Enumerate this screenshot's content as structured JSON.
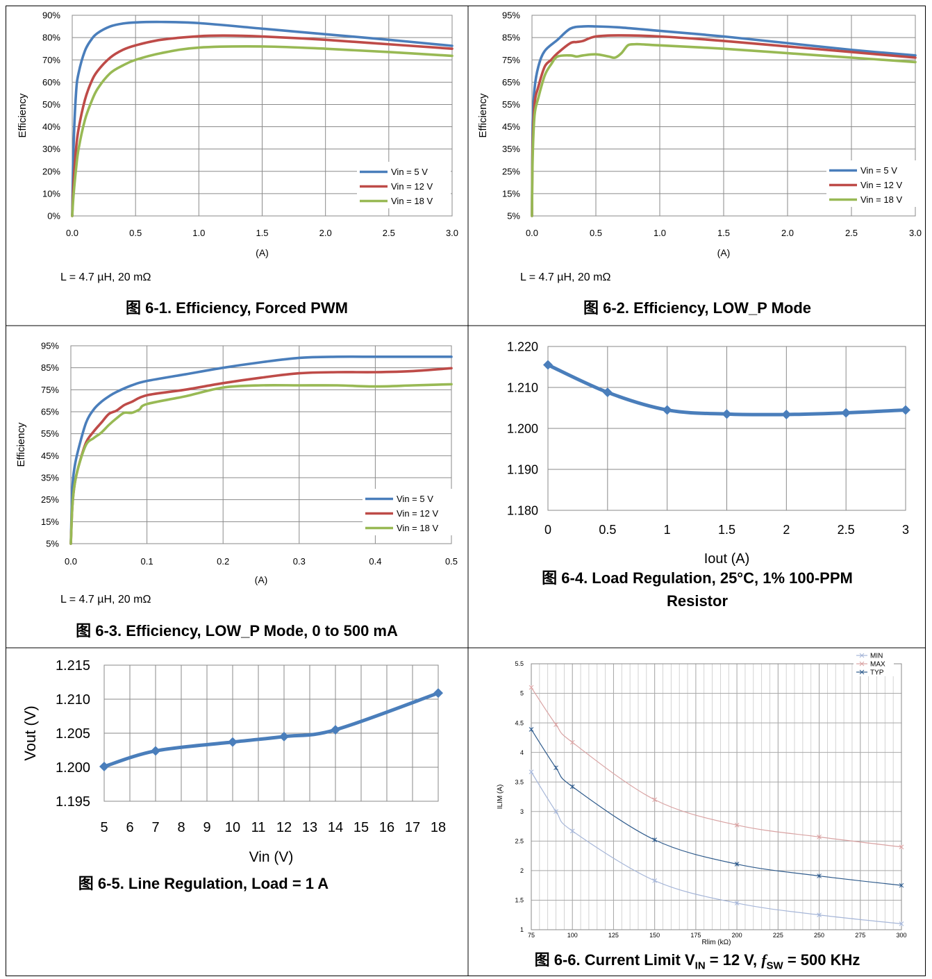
{
  "panels": [
    {
      "id": "fig1",
      "note": "L = 4.7 µH, 20 mΩ",
      "caption": "图 6-1. Efficiency, Forced PWM",
      "chart": {
        "type": "line",
        "ylabel": "Efficiency",
        "xlabel": "(A)",
        "xlim": [
          0,
          3
        ],
        "ylim": [
          0,
          90
        ],
        "xticks": [
          "0.0",
          "0.5",
          "1.0",
          "1.5",
          "2.0",
          "2.5",
          "3.0"
        ],
        "yticks": [
          "0%",
          "10%",
          "20%",
          "30%",
          "40%",
          "50%",
          "60%",
          "70%",
          "80%",
          "90%"
        ],
        "legend": "bottom-right",
        "series": [
          {
            "name": "Vin = 5 V",
            "color": "#4a7ebb",
            "x": [
              0,
              0.01,
              0.03,
              0.05,
              0.1,
              0.15,
              0.2,
              0.3,
              0.4,
              0.5,
              0.7,
              1.0,
              1.5,
              2.0,
              2.5,
              3.0
            ],
            "y": [
              0,
              30,
              55,
              64,
              74,
              79,
              82,
              85,
              86.3,
              86.8,
              87,
              86.5,
              84,
              81.5,
              79,
              76.3
            ]
          },
          {
            "name": "Vin = 12 V",
            "color": "#be4b48",
            "x": [
              0,
              0.01,
              0.03,
              0.05,
              0.1,
              0.15,
              0.2,
              0.3,
              0.4,
              0.5,
              0.7,
              1.0,
              1.2,
              1.5,
              2.0,
              2.5,
              3.0
            ],
            "y": [
              0,
              14,
              30,
              39,
              52,
              60,
              65,
              71,
              74.5,
              76.5,
              79,
              80.6,
              80.9,
              80.5,
              79,
              77,
              75
            ]
          },
          {
            "name": "Vin = 18 V",
            "color": "#98b954",
            "x": [
              0,
              0.01,
              0.03,
              0.05,
              0.1,
              0.15,
              0.2,
              0.3,
              0.4,
              0.5,
              0.7,
              1.0,
              1.5,
              2.0,
              2.5,
              3.0
            ],
            "y": [
              0,
              9,
              21,
              30,
              43,
              51,
              57,
              64,
              67.5,
              70,
              73,
              75.5,
              76,
              75,
              73.5,
              71.8
            ]
          }
        ]
      }
    },
    {
      "id": "fig2",
      "note": "L = 4.7 µH, 20 mΩ",
      "caption": "图 6-2. Efficiency, LOW_P Mode",
      "chart": {
        "type": "line",
        "ylabel": "Efficiency",
        "xlabel": "(A)",
        "xlim": [
          0,
          3
        ],
        "ylim": [
          5,
          95
        ],
        "xticks": [
          "0.0",
          "0.5",
          "1.0",
          "1.5",
          "2.0",
          "2.5",
          "3.0"
        ],
        "yticks": [
          "5%",
          "15%",
          "25%",
          "35%",
          "45%",
          "55%",
          "65%",
          "75%",
          "85%",
          "95%"
        ],
        "legend": "bottom-right",
        "series": [
          {
            "name": "Vin = 5 V",
            "color": "#4a7ebb",
            "x": [
              0,
              0.005,
              0.02,
              0.05,
              0.1,
              0.2,
              0.3,
              0.4,
              0.5,
              0.7,
              1.0,
              1.5,
              2.0,
              2.5,
              3.0
            ],
            "y": [
              5,
              45,
              62,
              72,
              79,
              84,
              89,
              90,
              90,
              89.5,
              88,
              85.5,
              82.5,
              79.5,
              77
            ]
          },
          {
            "name": "Vin = 12 V",
            "color": "#be4b48",
            "x": [
              0,
              0.005,
              0.02,
              0.05,
              0.1,
              0.15,
              0.2,
              0.3,
              0.35,
              0.4,
              0.5,
              0.7,
              1.0,
              1.5,
              2.0,
              2.5,
              3.0
            ],
            "y": [
              5,
              35,
              55,
              63,
              72,
              75,
              78,
              82.5,
              83,
              83.5,
              85.5,
              86,
              85.5,
              83.5,
              81,
              78.5,
              76
            ]
          },
          {
            "name": "Vin = 18 V",
            "color": "#98b954",
            "x": [
              0,
              0.005,
              0.02,
              0.05,
              0.1,
              0.15,
              0.2,
              0.3,
              0.35,
              0.4,
              0.5,
              0.6,
              0.65,
              0.7,
              0.75,
              0.8,
              0.85,
              1.0,
              1.5,
              2.0,
              2.5,
              3.0
            ],
            "y": [
              5,
              30,
              50,
              58,
              68,
              73,
              76.5,
              77,
              76.5,
              77,
              77.5,
              76.5,
              76,
              78,
              81.5,
              82,
              82,
              81.5,
              80,
              78,
              76,
              74
            ]
          }
        ]
      }
    },
    {
      "id": "fig3",
      "note": "L = 4.7 µH, 20 mΩ",
      "caption": "图 6-3. Efficiency, LOW_P Mode, 0 to 500 mA",
      "chart": {
        "type": "line",
        "ylabel": "Efficiency",
        "xlabel": "(A)",
        "xlim": [
          0,
          0.5
        ],
        "ylim": [
          5,
          95
        ],
        "xticks": [
          "0.0",
          "0.1",
          "0.2",
          "0.3",
          "0.4",
          "0.5"
        ],
        "yticks": [
          "5%",
          "15%",
          "25%",
          "35%",
          "45%",
          "55%",
          "65%",
          "75%",
          "85%",
          "95%"
        ],
        "legend": "bottom-right",
        "series": [
          {
            "name": "Vin = 5 V",
            "color": "#4a7ebb",
            "x": [
              0,
              0.002,
              0.005,
              0.01,
              0.02,
              0.03,
              0.04,
              0.05,
              0.06,
              0.08,
              0.1,
              0.15,
              0.2,
              0.25,
              0.3,
              0.35,
              0.4,
              0.45,
              0.5
            ],
            "y": [
              5,
              30,
              40,
              48,
              60,
              66,
              69.5,
              72,
              74,
              77,
              79,
              82,
              85,
              87.5,
              89.5,
              90,
              90,
              90,
              90
            ]
          },
          {
            "name": "Vin = 12 V",
            "color": "#be4b48",
            "x": [
              0,
              0.002,
              0.005,
              0.01,
              0.02,
              0.03,
              0.04,
              0.05,
              0.06,
              0.07,
              0.08,
              0.1,
              0.15,
              0.2,
              0.25,
              0.3,
              0.35,
              0.4,
              0.45,
              0.5
            ],
            "y": [
              5,
              22,
              32,
              40,
              51,
              56,
              60,
              64,
              65.5,
              68,
              69.5,
              72.5,
              75,
              78,
              80.5,
              82.5,
              83,
              83,
              83.5,
              84.8
            ]
          },
          {
            "name": "Vin = 18 V",
            "color": "#98b954",
            "x": [
              0,
              0.002,
              0.005,
              0.01,
              0.02,
              0.03,
              0.04,
              0.05,
              0.06,
              0.07,
              0.08,
              0.09,
              0.1,
              0.15,
              0.2,
              0.25,
              0.3,
              0.35,
              0.4,
              0.45,
              0.5
            ],
            "y": [
              5,
              22,
              32,
              40,
              50,
              53,
              55.5,
              59,
              62,
              64.5,
              64.5,
              66,
              68.5,
              72,
              76,
              77,
              77,
              77,
              76.5,
              77,
              77.5
            ]
          }
        ]
      }
    },
    {
      "id": "fig4",
      "caption_lines": [
        "图 6-4. Load Regulation, 25°C, 1% 100-PPM",
        "Resistor"
      ],
      "chart": {
        "type": "line",
        "xlabel": "Iout (A)",
        "ylabel": "",
        "xlim": [
          0,
          3
        ],
        "ylim": [
          1.18,
          1.22
        ],
        "xticks": [
          "0",
          "0.5",
          "1",
          "1.5",
          "2",
          "2.5",
          "3"
        ],
        "yticks": [
          "1.180",
          "1.190",
          "1.200",
          "1.210",
          "1.220"
        ],
        "series": [
          {
            "color": "#4a7ebb",
            "x": [
              0,
              0.5,
              1,
              1.5,
              2,
              2.5,
              3
            ],
            "y": [
              1.2155,
              1.2088,
              1.2045,
              1.2035,
              1.2034,
              1.2038,
              1.2045
            ]
          }
        ]
      }
    },
    {
      "id": "fig5",
      "caption": "图 6-5. Line Regulation, Load = 1 A",
      "chart": {
        "type": "line",
        "xlabel": "Vin (V)",
        "ylabel": "Vout (V)",
        "xlim": [
          5,
          18
        ],
        "ylim": [
          1.195,
          1.215
        ],
        "xticks": [
          "5",
          "6",
          "7",
          "8",
          "9",
          "10",
          "11",
          "12",
          "13",
          "14",
          "15",
          "16",
          "17",
          "18"
        ],
        "yticks": [
          "1.195",
          "1.200",
          "1.205",
          "1.210",
          "1.215"
        ],
        "series": [
          {
            "color": "#4a7ebb",
            "x": [
              5,
              7,
              10,
              12,
              14,
              18
            ],
            "y": [
              1.2001,
              1.2024,
              1.2037,
              1.2045,
              1.2055,
              1.2109
            ]
          }
        ]
      }
    },
    {
      "id": "fig6",
      "caption": "图 6-6. Current Limit V",
      "caption_sub1": "IN",
      "caption_mid": " = 12 V, ",
      "caption_f": "f",
      "caption_sub2": "SW",
      "caption_end": " = 500 KHz",
      "chart": {
        "type": "line",
        "xlabel": "Rlim (kΩ)",
        "ylabel": "ILIM (A)",
        "xlim": [
          75,
          300
        ],
        "ylim": [
          1,
          5.5
        ],
        "xticks": [
          "75",
          "100",
          "125",
          "150",
          "175",
          "200",
          "225",
          "250",
          "275",
          "300"
        ],
        "yticks": [
          "1",
          "1.5",
          "2",
          "2.5",
          "3",
          "3.5",
          "4",
          "4.5",
          "5",
          "5.5"
        ],
        "legend": "top-right",
        "series": [
          {
            "name": "MIN",
            "color": "#a6b6d8",
            "x": [
              75,
              90,
              100,
              150,
              200,
              250,
              300
            ],
            "y": [
              3.67,
              3.0,
              2.67,
              1.83,
              1.45,
              1.25,
              1.1
            ]
          },
          {
            "name": "MAX",
            "color": "#d9a3a3",
            "x": [
              75,
              90,
              100,
              150,
              200,
              250,
              300
            ],
            "y": [
              5.1,
              4.47,
              4.17,
              3.2,
              2.77,
              2.57,
              2.4
            ]
          },
          {
            "name": "TYP",
            "color": "#2f5b8c",
            "x": [
              75,
              90,
              100,
              150,
              200,
              250,
              300
            ],
            "y": [
              4.39,
              3.74,
              3.42,
              2.52,
              2.11,
              1.91,
              1.75
            ]
          }
        ]
      }
    }
  ]
}
